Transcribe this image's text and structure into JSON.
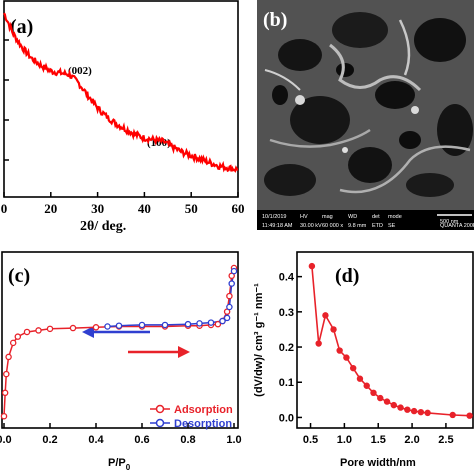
{
  "panels": {
    "a": {
      "label": "(a)",
      "xlabel": "2θ/ deg.",
      "xticks": [
        "0",
        "20",
        "30",
        "40",
        "50",
        "60"
      ],
      "peak1": "(002)",
      "peak2": "(100)"
    },
    "b": {
      "label": "(b)",
      "sem_row1": [
        "10/1/2019",
        "HV",
        "mag",
        "WD",
        "det",
        "mode",
        "500 nm"
      ],
      "sem_row2": [
        "11:49:18 AM",
        "30.00 kV",
        "60 000 x",
        "9.8 mm",
        "ETD",
        "SE",
        "QUANTA 200F"
      ]
    },
    "c": {
      "label": "(c)",
      "xlabel_main": "P/P",
      "xlabel_sub": "0",
      "xticks": [
        "0.0",
        "0.2",
        "0.4",
        "0.6",
        "0.8",
        "1.0"
      ]
    },
    "d": {
      "label": "(d)",
      "xlabel": "Pore width/nm",
      "ylabel": "(dV/dw)/ cm³ g⁻¹ nm⁻¹",
      "xticks": [
        "0.5",
        "1.0",
        "1.5",
        "2.0",
        "2.5"
      ],
      "yticks": [
        "0.0",
        "0.1",
        "0.2",
        "0.3",
        "0.4"
      ]
    }
  },
  "chart_data": [
    {
      "panel": "a",
      "type": "line",
      "xlabel": "2θ/ deg.",
      "xlim": [
        10,
        60
      ],
      "x": [
        10,
        12,
        14,
        16,
        18,
        20,
        22,
        24,
        26,
        28,
        30,
        32,
        34,
        36,
        38,
        40,
        42,
        44,
        46,
        48,
        50,
        52,
        54,
        56,
        58,
        60
      ],
      "y": [
        1.0,
        0.88,
        0.8,
        0.74,
        0.7,
        0.67,
        0.66,
        0.65,
        0.6,
        0.53,
        0.46,
        0.41,
        0.37,
        0.34,
        0.31,
        0.29,
        0.28,
        0.27,
        0.24,
        0.21,
        0.19,
        0.17,
        0.15,
        0.13,
        0.12,
        0.11
      ],
      "annotations": [
        "(002)",
        "(100)"
      ],
      "color": "#ff0000"
    },
    {
      "panel": "c",
      "type": "line",
      "xlabel": "P/P0",
      "xlim": [
        0,
        1.0
      ],
      "series": [
        {
          "name": "Adsorption",
          "color": "#e8222a",
          "x": [
            0.0,
            0.005,
            0.01,
            0.02,
            0.04,
            0.06,
            0.1,
            0.15,
            0.2,
            0.3,
            0.4,
            0.5,
            0.6,
            0.7,
            0.8,
            0.85,
            0.9,
            0.93,
            0.95,
            0.97,
            0.98,
            0.99,
            1.0
          ],
          "y": [
            0.05,
            0.2,
            0.32,
            0.43,
            0.52,
            0.56,
            0.59,
            0.6,
            0.61,
            0.615,
            0.62,
            0.625,
            0.625,
            0.625,
            0.63,
            0.63,
            0.635,
            0.64,
            0.66,
            0.72,
            0.82,
            0.95,
            1.0
          ]
        },
        {
          "name": "Desorption",
          "color": "#2f3fd0",
          "x": [
            1.0,
            0.99,
            0.98,
            0.97,
            0.95,
            0.9,
            0.85,
            0.8,
            0.7,
            0.6,
            0.5,
            0.45
          ],
          "y": [
            0.98,
            0.9,
            0.75,
            0.68,
            0.66,
            0.65,
            0.645,
            0.64,
            0.635,
            0.635,
            0.63,
            0.625
          ]
        }
      ]
    },
    {
      "panel": "d",
      "type": "line",
      "xlabel": "Pore width/nm",
      "ylabel": "(dV/dw)/ cm³ g⁻¹ nm⁻¹",
      "xlim": [
        0.3,
        2.9
      ],
      "ylim": [
        -0.03,
        0.47
      ],
      "x": [
        0.52,
        0.62,
        0.72,
        0.84,
        0.93,
        1.03,
        1.13,
        1.23,
        1.33,
        1.43,
        1.53,
        1.63,
        1.73,
        1.83,
        1.93,
        2.03,
        2.13,
        2.23,
        2.6,
        2.85
      ],
      "y": [
        0.43,
        0.21,
        0.29,
        0.25,
        0.19,
        0.17,
        0.14,
        0.11,
        0.09,
        0.07,
        0.055,
        0.045,
        0.035,
        0.028,
        0.022,
        0.018,
        0.015,
        0.013,
        0.007,
        0.005
      ],
      "color": "#e8222a"
    }
  ],
  "legend_c": [
    {
      "label": "Adsorption",
      "color": "#e8222a"
    },
    {
      "label": "Desorption",
      "color": "#2f3fd0"
    }
  ]
}
